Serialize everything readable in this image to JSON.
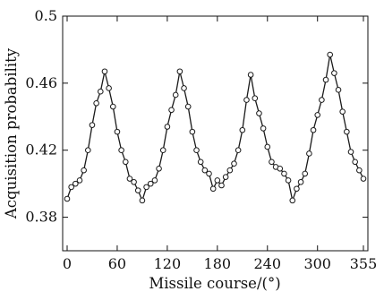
{
  "chart_data": {
    "type": "line",
    "title": "",
    "xlabel": "Missile course/(°)",
    "ylabel": "Acquisition probability",
    "xlim": [
      0,
      355
    ],
    "ylim": [
      0.36,
      0.5
    ],
    "x_ticks": [
      0,
      60,
      120,
      180,
      240,
      300,
      355
    ],
    "y_ticks": [
      0.38,
      0.42,
      0.46,
      0.5
    ],
    "x_tick_labels": [
      "0",
      "60",
      "120",
      "180",
      "240",
      "300",
      "355"
    ],
    "y_tick_labels": [
      "0.38",
      "0.42",
      "0.46",
      "0.5"
    ],
    "grid": false,
    "marker": "open-circle",
    "series": [
      {
        "x": [
          0,
          5,
          10,
          15,
          20,
          25,
          30,
          35,
          40,
          45,
          50,
          55,
          60,
          65,
          70,
          75,
          80,
          85,
          90,
          95,
          100,
          105,
          110,
          115,
          120,
          125,
          130,
          135,
          140,
          145,
          150,
          155,
          160,
          165,
          170,
          175,
          180,
          185,
          190,
          195,
          200,
          205,
          210,
          215,
          220,
          225,
          230,
          235,
          240,
          245,
          250,
          255,
          260,
          265,
          270,
          275,
          280,
          285,
          290,
          295,
          300,
          305,
          310,
          315,
          320,
          325,
          330,
          335,
          340,
          345,
          350,
          355
        ],
        "values": [
          0.391,
          0.398,
          0.4,
          0.402,
          0.408,
          0.42,
          0.435,
          0.448,
          0.455,
          0.467,
          0.457,
          0.446,
          0.431,
          0.42,
          0.413,
          0.403,
          0.401,
          0.396,
          0.39,
          0.398,
          0.4,
          0.402,
          0.409,
          0.42,
          0.434,
          0.444,
          0.453,
          0.467,
          0.457,
          0.446,
          0.431,
          0.42,
          0.413,
          0.408,
          0.406,
          0.397,
          0.402,
          0.399,
          0.404,
          0.408,
          0.412,
          0.42,
          0.432,
          0.45,
          0.465,
          0.451,
          0.442,
          0.433,
          0.422,
          0.413,
          0.41,
          0.409,
          0.406,
          0.402,
          0.39,
          0.397,
          0.401,
          0.406,
          0.418,
          0.432,
          0.441,
          0.45,
          0.462,
          0.477,
          0.466,
          0.456,
          0.443,
          0.431,
          0.419,
          0.413,
          0.408,
          0.403
        ]
      }
    ],
    "colors": {
      "line": "#1a1a1a",
      "marker_stroke": "#1a1a1a",
      "marker_fill": "#ffffff",
      "axis": "#111111"
    }
  }
}
